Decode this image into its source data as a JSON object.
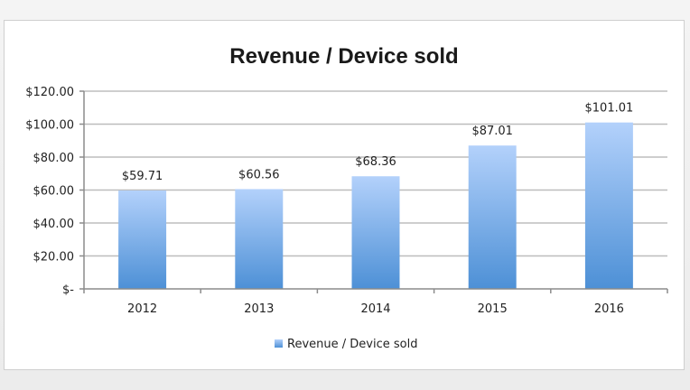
{
  "chart_data": {
    "type": "bar",
    "title": "Revenue / Device sold",
    "xlabel": "",
    "ylabel": "",
    "categories": [
      "2012",
      "2013",
      "2014",
      "2015",
      "2016"
    ],
    "series": [
      {
        "name": "Revenue / Device sold",
        "values": [
          59.71,
          60.56,
          68.36,
          87.01,
          101.01
        ],
        "value_labels": [
          "$59.71",
          "$60.56",
          "$68.36",
          "$87.01",
          "$101.01"
        ]
      }
    ],
    "ylim": [
      0,
      120
    ],
    "y_ticks": [
      0,
      20,
      40,
      60,
      80,
      100,
      120
    ],
    "y_tick_labels": [
      "$-",
      "$20.00",
      "$40.00",
      "$60.00",
      "$80.00",
      "$100.00",
      "$120.00"
    ],
    "grid": true,
    "legend_position": "bottom",
    "colors": {
      "bar_top": "#b3d1fb",
      "bar_bottom": "#4d90d6",
      "grid": "#bdbdbd",
      "axis": "#8c8c8c"
    }
  }
}
